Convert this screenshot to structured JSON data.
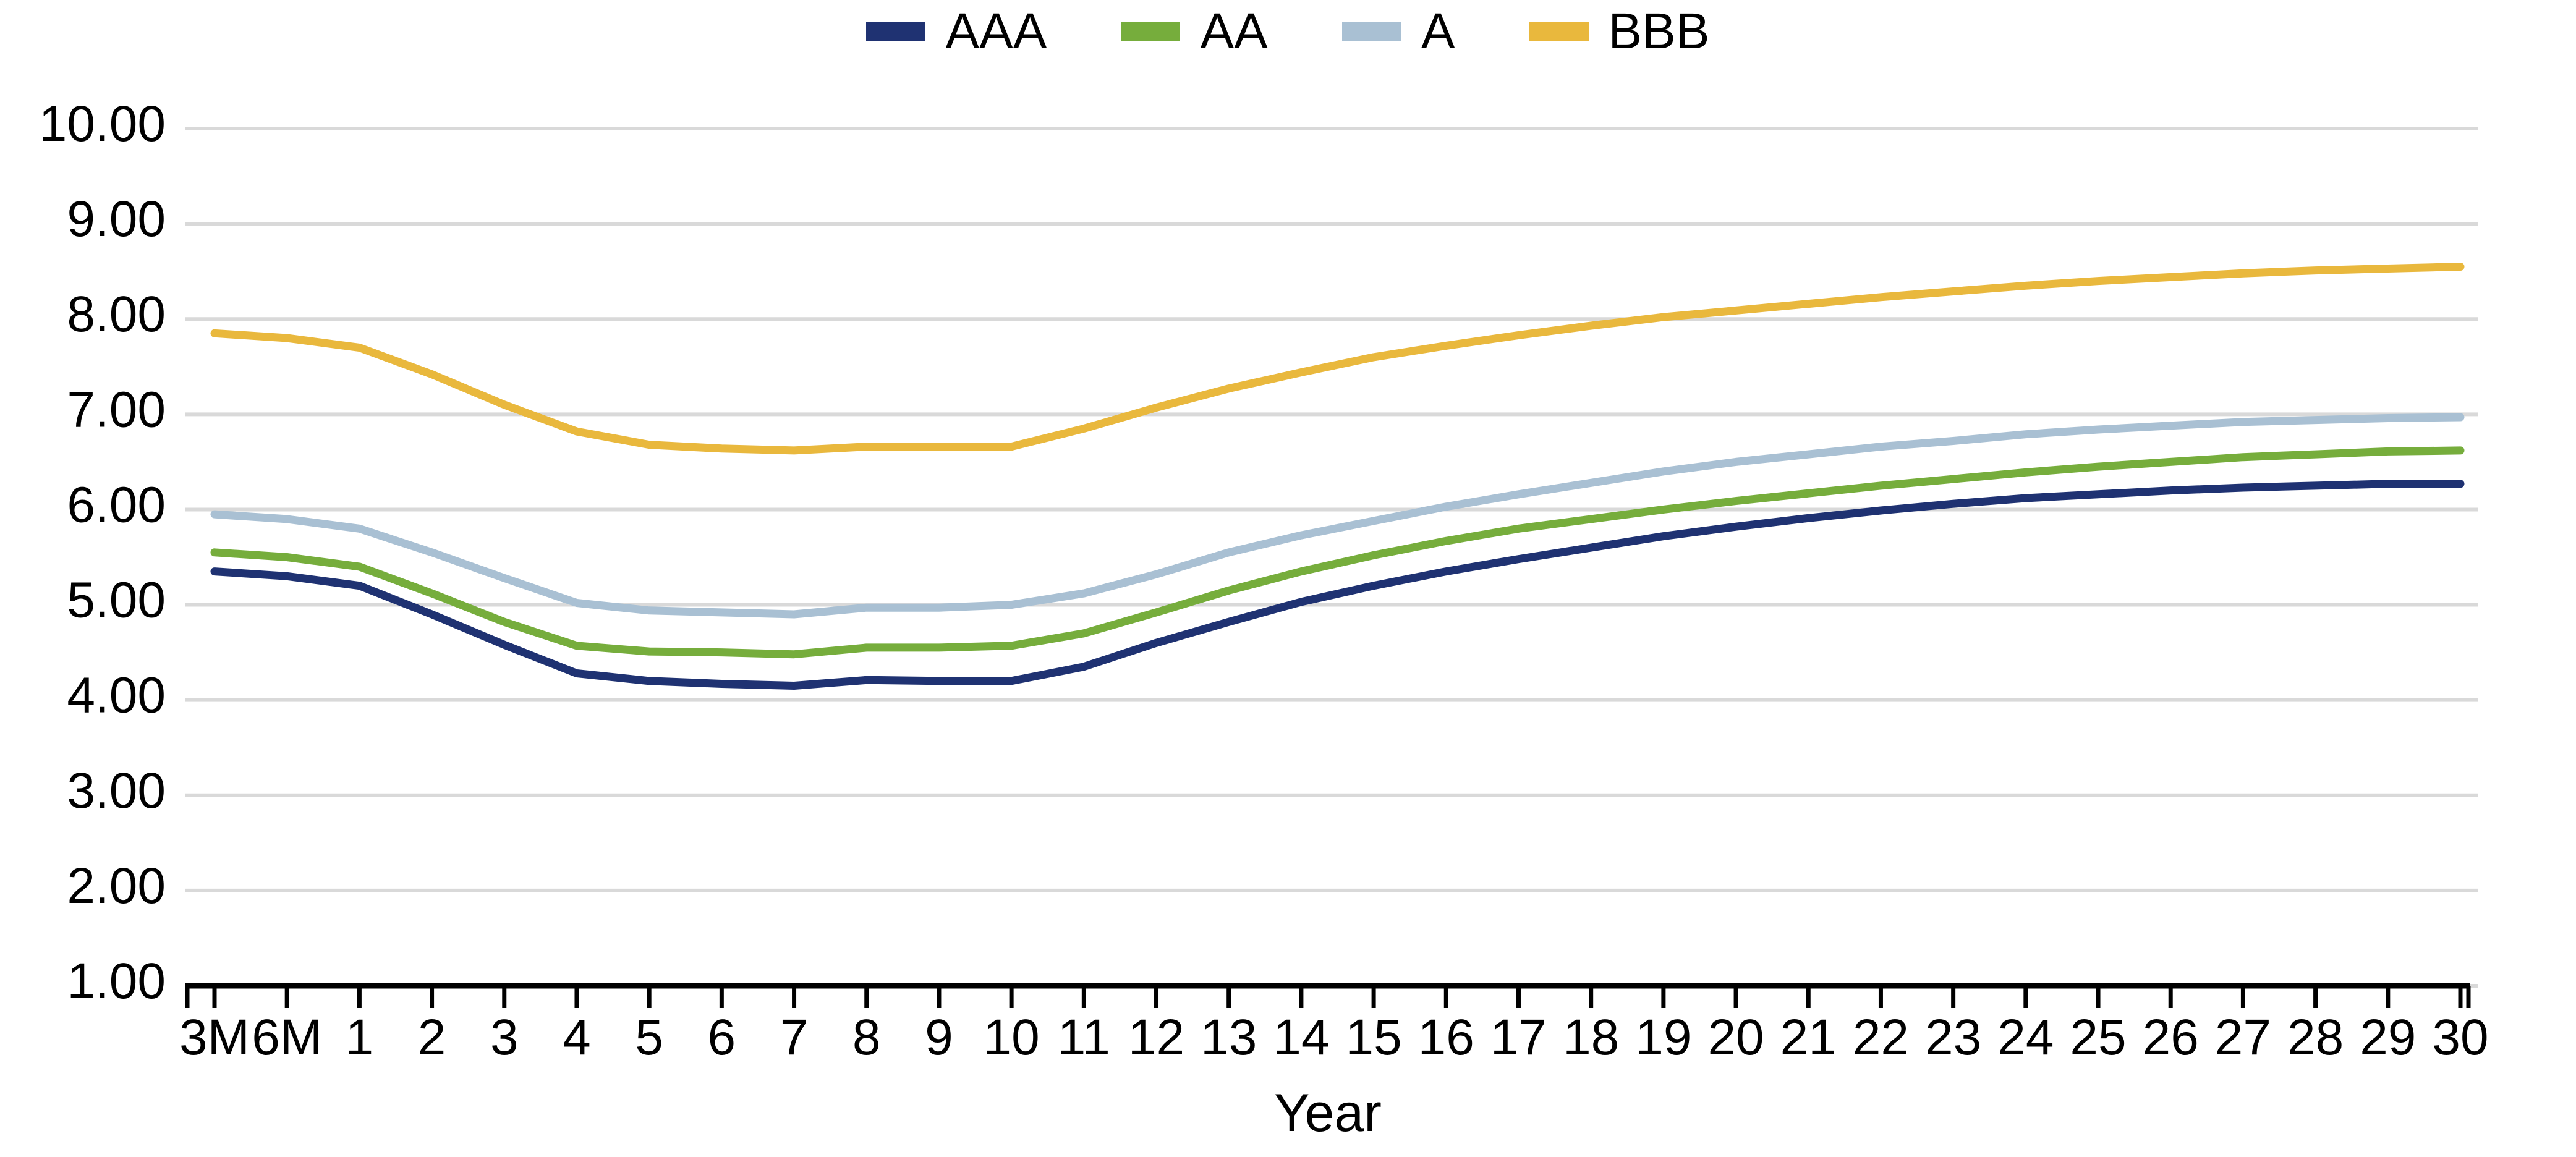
{
  "chart_data": {
    "type": "line",
    "title": "",
    "xlabel": "Year",
    "ylabel": "",
    "x_categories": [
      "3M",
      "6M",
      "1",
      "2",
      "3",
      "4",
      "5",
      "6",
      "7",
      "8",
      "9",
      "10",
      "11",
      "12",
      "13",
      "14",
      "15",
      "16",
      "17",
      "18",
      "19",
      "20",
      "21",
      "22",
      "23",
      "24",
      "25",
      "26",
      "27",
      "28",
      "29",
      "30"
    ],
    "y_tick_labels": [
      "10.00",
      "9.00",
      "8.00",
      "7.00",
      "6.00",
      "5.00",
      "4.00",
      "3.00",
      "2.00",
      "1.00"
    ],
    "ylim": [
      1.0,
      10.0
    ],
    "grid": "horizontal-only",
    "legend_position": "top-center",
    "series": [
      {
        "name": "AAA",
        "color": "#1F3272",
        "values": [
          5.35,
          5.3,
          5.2,
          4.9,
          4.58,
          4.28,
          4.2,
          4.17,
          4.15,
          4.21,
          4.2,
          4.2,
          4.35,
          4.6,
          4.82,
          5.03,
          5.2,
          5.35,
          5.48,
          5.6,
          5.72,
          5.82,
          5.91,
          5.99,
          6.06,
          6.12,
          6.16,
          6.2,
          6.23,
          6.25,
          6.27,
          6.27
        ]
      },
      {
        "name": "AA",
        "color": "#76AD3C",
        "values": [
          5.55,
          5.5,
          5.4,
          5.12,
          4.82,
          4.57,
          4.51,
          4.5,
          4.48,
          4.55,
          4.55,
          4.57,
          4.7,
          4.92,
          5.15,
          5.35,
          5.52,
          5.67,
          5.8,
          5.9,
          6.0,
          6.09,
          6.17,
          6.25,
          6.32,
          6.39,
          6.45,
          6.5,
          6.55,
          6.58,
          6.61,
          6.62
        ]
      },
      {
        "name": "A",
        "color": "#A9C0D3",
        "values": [
          5.95,
          5.9,
          5.8,
          5.55,
          5.28,
          5.02,
          4.94,
          4.92,
          4.9,
          4.97,
          4.97,
          5.0,
          5.12,
          5.32,
          5.55,
          5.73,
          5.88,
          6.03,
          6.16,
          6.28,
          6.4,
          6.5,
          6.58,
          6.66,
          6.72,
          6.79,
          6.84,
          6.88,
          6.92,
          6.94,
          6.96,
          6.97
        ]
      },
      {
        "name": "BBB",
        "color": "#E9B83D",
        "values": [
          7.85,
          7.8,
          7.7,
          7.42,
          7.1,
          6.82,
          6.68,
          6.64,
          6.62,
          6.66,
          6.66,
          6.66,
          6.85,
          7.07,
          7.27,
          7.44,
          7.6,
          7.72,
          7.83,
          7.93,
          8.02,
          8.09,
          8.16,
          8.23,
          8.29,
          8.35,
          8.4,
          8.44,
          8.48,
          8.51,
          8.53,
          8.55
        ]
      }
    ],
    "style": {
      "gridline_color": "#D9D9D9",
      "axis_color": "#000000",
      "background_color": "#FFFFFF",
      "line_width": 13
    }
  }
}
